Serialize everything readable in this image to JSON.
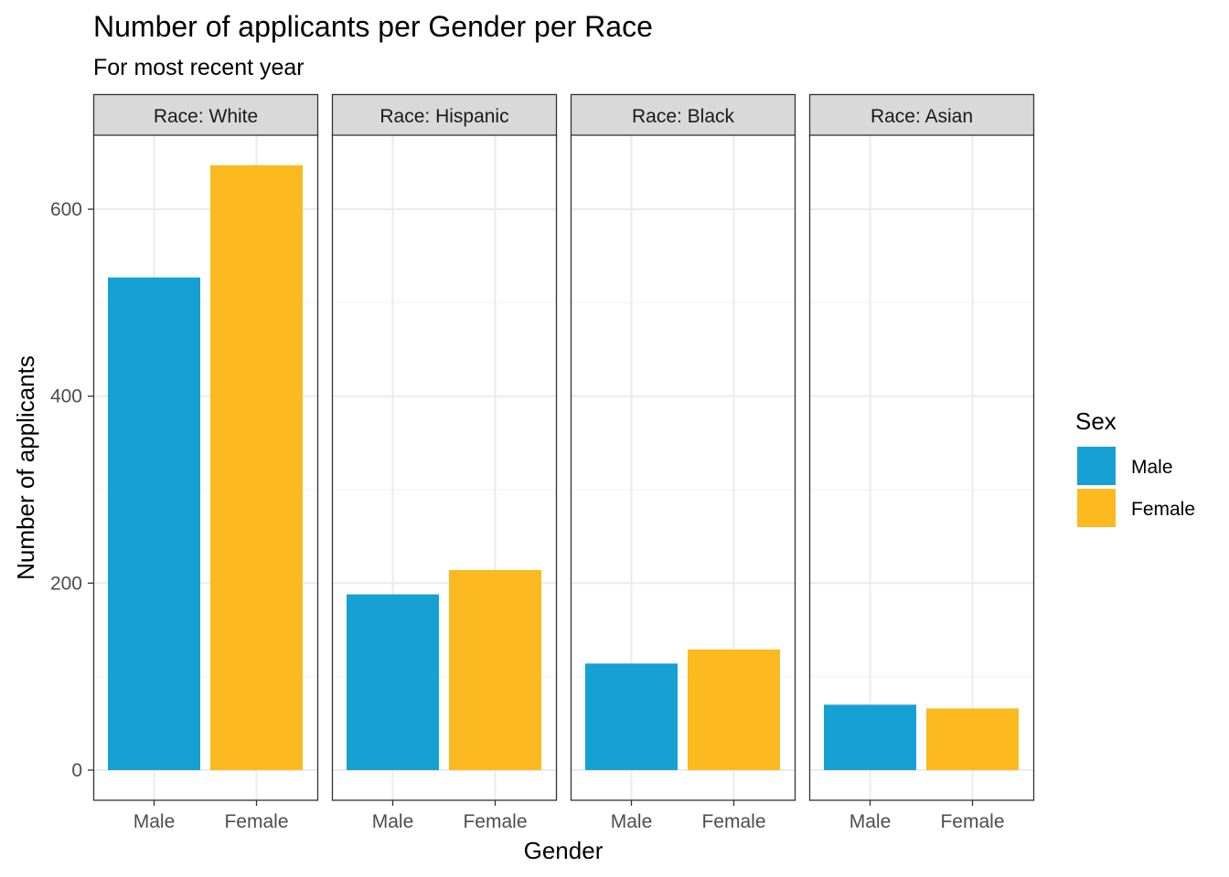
{
  "chart_data": {
    "type": "bar",
    "title": "Number of applicants per Gender per Race",
    "subtitle": "For most recent year",
    "xlabel": "Gender",
    "ylabel": "Number of applicants",
    "categories": [
      "Male",
      "Female"
    ],
    "yticks": [
      0,
      200,
      400,
      600
    ],
    "ylim": [
      -33,
      675
    ],
    "grid": true,
    "facets": [
      {
        "strip_label": "Race: White",
        "values": [
          527,
          647
        ]
      },
      {
        "strip_label": "Race: Hispanic",
        "values": [
          188,
          214
        ]
      },
      {
        "strip_label": "Race: Black",
        "values": [
          114,
          129
        ]
      },
      {
        "strip_label": "Race: Asian",
        "values": [
          70,
          66
        ]
      }
    ],
    "legend": {
      "title": "Sex",
      "placement": "right",
      "entries": [
        {
          "label": "Male",
          "color": "#17a0d4"
        },
        {
          "label": "Female",
          "color": "#fdb920"
        }
      ]
    },
    "colors": {
      "strip_fill": "#d9d9d9",
      "grid_major": "#ebebeb",
      "grid_minor": "#f2f2f2",
      "border": "#333333"
    }
  }
}
